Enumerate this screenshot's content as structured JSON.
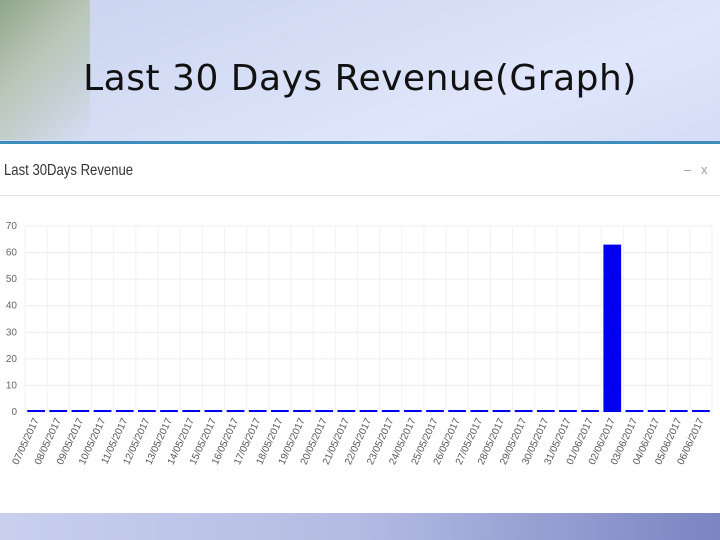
{
  "slide": {
    "title": "Last 30 Days Revenue(Graph)"
  },
  "panel": {
    "title": "Last 30Days Revenue",
    "minimize_icon": "minus-icon",
    "close_icon": "close-icon",
    "minimize_label": "–",
    "close_label": "x"
  },
  "colors": {
    "bar": "#0000ee",
    "panel_accent": "#3c8dbc"
  },
  "chart_data": {
    "type": "bar",
    "title": "Last 30Days Revenue",
    "xlabel": "",
    "ylabel": "",
    "ylim": [
      0,
      70
    ],
    "yticks": [
      0,
      10,
      20,
      30,
      40,
      50,
      60,
      70
    ],
    "grid": true,
    "categories": [
      "07/05/2017",
      "08/05/2017",
      "09/05/2017",
      "10/05/2017",
      "11/05/2017",
      "12/05/2017",
      "13/05/2017",
      "14/05/2017",
      "15/05/2017",
      "16/05/2017",
      "17/05/2017",
      "18/05/2017",
      "19/05/2017",
      "20/05/2017",
      "21/05/2017",
      "22/05/2017",
      "23/05/2017",
      "24/05/2017",
      "25/05/2017",
      "26/05/2017",
      "27/05/2017",
      "28/05/2017",
      "29/05/2017",
      "30/05/2017",
      "31/05/2017",
      "01/06/2017",
      "02/06/2017",
      "03/06/2017",
      "04/06/2017",
      "05/06/2017",
      "06/06/2017"
    ],
    "values": [
      0,
      0,
      0,
      0,
      0,
      0,
      0,
      0,
      0,
      0,
      0,
      0,
      0,
      0,
      0,
      0,
      0,
      0,
      0,
      0,
      0,
      0,
      0,
      0,
      0,
      0,
      63,
      0,
      0,
      0,
      0
    ]
  }
}
